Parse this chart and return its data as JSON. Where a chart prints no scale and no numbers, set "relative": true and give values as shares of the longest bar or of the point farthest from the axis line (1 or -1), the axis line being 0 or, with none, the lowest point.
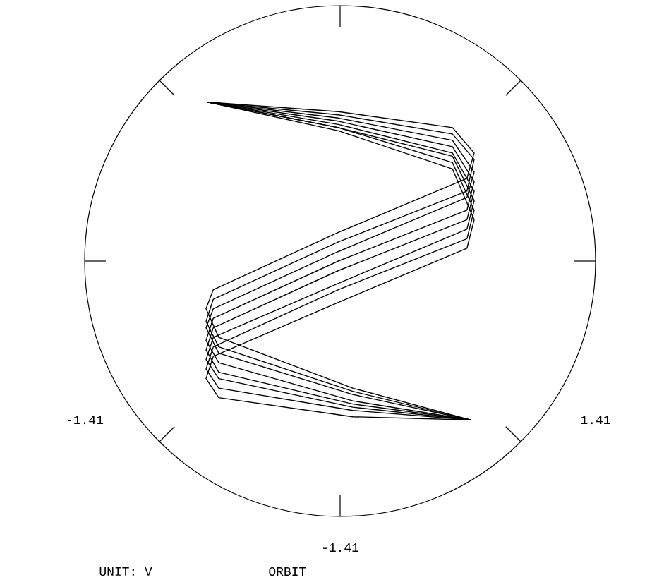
{
  "chart_data": {
    "type": "line",
    "relative": true,
    "x": [
      -0.73,
      -0.01,
      0.62,
      0.74,
      0.7,
      -0.01,
      -0.7,
      -0.74,
      -0.67,
      0.07,
      0.72
    ],
    "series": [
      {
        "color": "#000000",
        "values": [
          1,
          0.97,
          0.92,
          0.84,
          0.76,
          0.59,
          0.41,
          0.35,
          0.26,
          0.1,
          0
        ]
      },
      {
        "color": "#000000",
        "values": [
          1,
          0.96,
          0.9,
          0.82,
          0.72,
          0.56,
          0.38,
          0.31,
          0.23,
          0.09,
          0
        ]
      },
      {
        "color": "#000000",
        "values": [
          1,
          0.95,
          0.88,
          0.78,
          0.7,
          0.53,
          0.35,
          0.29,
          0.21,
          0.08,
          0
        ]
      },
      {
        "color": "#000000",
        "values": [
          1,
          0.94,
          0.86,
          0.75,
          0.66,
          0.5,
          0.32,
          0.25,
          0.18,
          0.06,
          0
        ]
      },
      {
        "color": "#000000",
        "values": [
          1,
          0.93,
          0.84,
          0.72,
          0.63,
          0.47,
          0.29,
          0.22,
          0.15,
          0.05,
          0
        ]
      },
      {
        "color": "#000000",
        "values": [
          1,
          0.92,
          0.83,
          0.69,
          0.6,
          0.43,
          0.26,
          0.19,
          0.13,
          0.04,
          0
        ]
      },
      {
        "color": "#000000",
        "values": [
          1,
          0.92,
          0.81,
          0.66,
          0.57,
          0.41,
          0.23,
          0.16,
          0.1,
          0.03,
          0
        ]
      },
      {
        "color": "#000000",
        "values": [
          1,
          0.91,
          0.79,
          0.63,
          0.54,
          0.37,
          0.2,
          0.13,
          0.07,
          0.01,
          0
        ]
      }
    ],
    "xlim": [
      -1.41,
      1.41
    ],
    "xticks": [
      -1.41,
      1.41
    ],
    "tick_labels": "x",
    "annotations": [
      "-1.41",
      "UNIT: V",
      "ORBIT"
    ]
  }
}
